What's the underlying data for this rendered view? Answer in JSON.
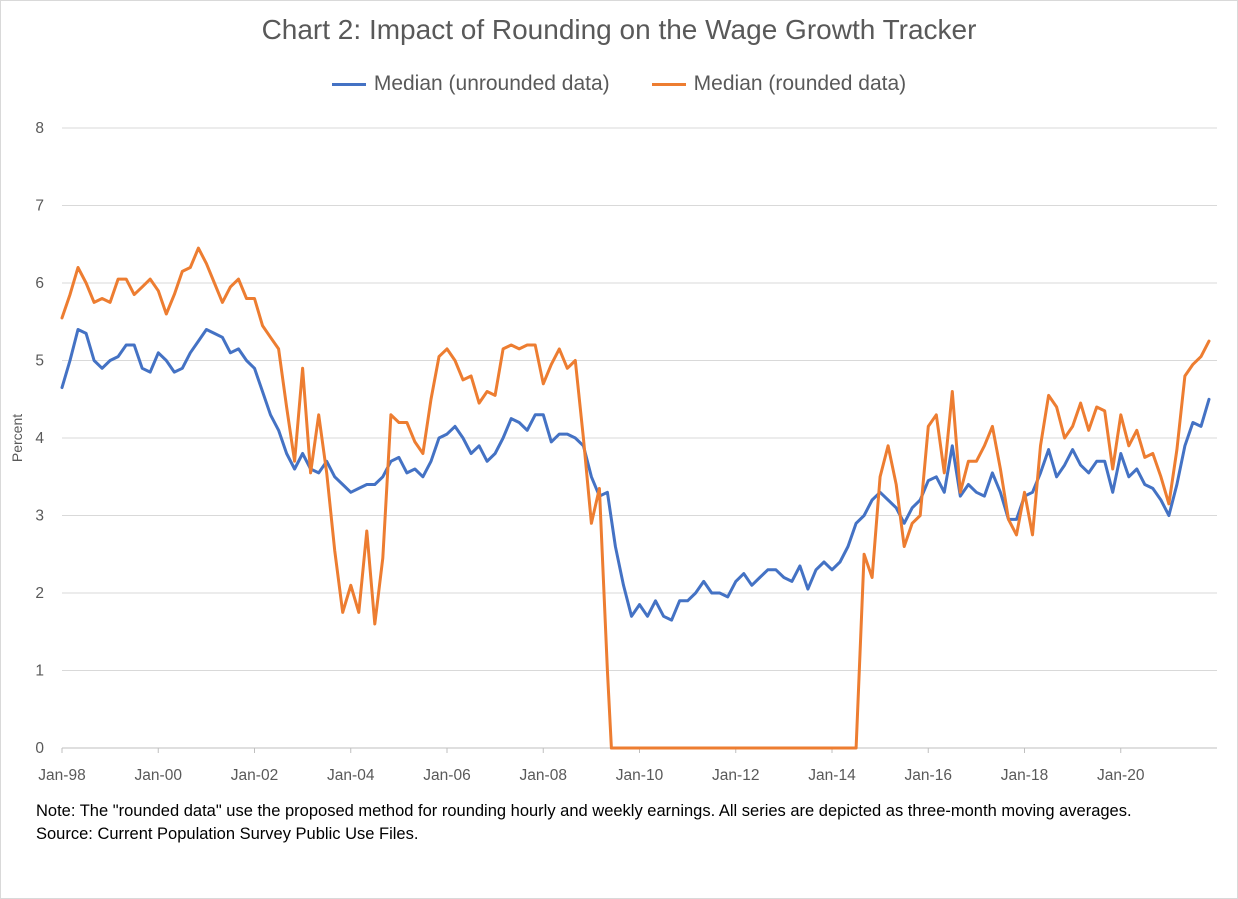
{
  "chart_data": {
    "type": "line",
    "title": "Chart 2: Impact of Rounding on the Wage Growth Tracker",
    "xlabel": "",
    "ylabel": "Percent",
    "ylim": [
      0,
      8
    ],
    "yticks": [
      "0",
      "1",
      "2",
      "3",
      "4",
      "5",
      "6",
      "7",
      "8"
    ],
    "xlim": [
      "1998-01",
      "2021-12"
    ],
    "xticks": [
      "Jan-98",
      "Jan-00",
      "Jan-02",
      "Jan-04",
      "Jan-06",
      "Jan-08",
      "Jan-10",
      "Jan-12",
      "Jan-14",
      "Jan-16",
      "Jan-18",
      "Jan-20"
    ],
    "grid": true,
    "legend_position": "top",
    "series": [
      {
        "name": "Median (unrounded data)",
        "color": "#4472C4",
        "points": [
          [
            "1998-01",
            4.65
          ],
          [
            "1998-03",
            5.0
          ],
          [
            "1998-05",
            5.4
          ],
          [
            "1998-07",
            5.35
          ],
          [
            "1998-09",
            5.0
          ],
          [
            "1998-11",
            4.9
          ],
          [
            "1999-01",
            5.0
          ],
          [
            "1999-03",
            5.05
          ],
          [
            "1999-05",
            5.2
          ],
          [
            "1999-07",
            5.2
          ],
          [
            "1999-09",
            4.9
          ],
          [
            "1999-11",
            4.85
          ],
          [
            "2000-01",
            5.1
          ],
          [
            "2000-03",
            5.0
          ],
          [
            "2000-05",
            4.85
          ],
          [
            "2000-07",
            4.9
          ],
          [
            "2000-09",
            5.1
          ],
          [
            "2000-11",
            5.25
          ],
          [
            "2001-01",
            5.4
          ],
          [
            "2001-03",
            5.35
          ],
          [
            "2001-05",
            5.3
          ],
          [
            "2001-07",
            5.1
          ],
          [
            "2001-09",
            5.15
          ],
          [
            "2001-11",
            5.0
          ],
          [
            "2002-01",
            4.9
          ],
          [
            "2002-03",
            4.6
          ],
          [
            "2002-05",
            4.3
          ],
          [
            "2002-07",
            4.1
          ],
          [
            "2002-09",
            3.8
          ],
          [
            "2002-11",
            3.6
          ],
          [
            "2003-01",
            3.8
          ],
          [
            "2003-03",
            3.6
          ],
          [
            "2003-05",
            3.55
          ],
          [
            "2003-07",
            3.7
          ],
          [
            "2003-09",
            3.5
          ],
          [
            "2003-11",
            3.4
          ],
          [
            "2004-01",
            3.3
          ],
          [
            "2004-03",
            3.35
          ],
          [
            "2004-05",
            3.4
          ],
          [
            "2004-07",
            3.4
          ],
          [
            "2004-09",
            3.5
          ],
          [
            "2004-11",
            3.7
          ],
          [
            "2005-01",
            3.75
          ],
          [
            "2005-03",
            3.55
          ],
          [
            "2005-05",
            3.6
          ],
          [
            "2005-07",
            3.5
          ],
          [
            "2005-09",
            3.7
          ],
          [
            "2005-11",
            4.0
          ],
          [
            "2006-01",
            4.05
          ],
          [
            "2006-03",
            4.15
          ],
          [
            "2006-05",
            4.0
          ],
          [
            "2006-07",
            3.8
          ],
          [
            "2006-09",
            3.9
          ],
          [
            "2006-11",
            3.7
          ],
          [
            "2007-01",
            3.8
          ],
          [
            "2007-03",
            4.0
          ],
          [
            "2007-05",
            4.25
          ],
          [
            "2007-07",
            4.2
          ],
          [
            "2007-09",
            4.1
          ],
          [
            "2007-11",
            4.3
          ],
          [
            "2008-01",
            4.3
          ],
          [
            "2008-03",
            3.95
          ],
          [
            "2008-05",
            4.05
          ],
          [
            "2008-07",
            4.05
          ],
          [
            "2008-09",
            4.0
          ],
          [
            "2008-11",
            3.9
          ],
          [
            "2009-01",
            3.5
          ],
          [
            "2009-03",
            3.25
          ],
          [
            "2009-05",
            3.3
          ],
          [
            "2009-07",
            2.6
          ],
          [
            "2009-09",
            2.1
          ],
          [
            "2009-11",
            1.7
          ],
          [
            "2010-01",
            1.85
          ],
          [
            "2010-03",
            1.7
          ],
          [
            "2010-05",
            1.9
          ],
          [
            "2010-07",
            1.7
          ],
          [
            "2010-09",
            1.65
          ],
          [
            "2010-11",
            1.9
          ],
          [
            "2011-01",
            1.9
          ],
          [
            "2011-03",
            2.0
          ],
          [
            "2011-05",
            2.15
          ],
          [
            "2011-07",
            2.0
          ],
          [
            "2011-09",
            2.0
          ],
          [
            "2011-11",
            1.95
          ],
          [
            "2012-01",
            2.15
          ],
          [
            "2012-03",
            2.25
          ],
          [
            "2012-05",
            2.1
          ],
          [
            "2012-07",
            2.2
          ],
          [
            "2012-09",
            2.3
          ],
          [
            "2012-11",
            2.3
          ],
          [
            "2013-01",
            2.2
          ],
          [
            "2013-03",
            2.15
          ],
          [
            "2013-05",
            2.35
          ],
          [
            "2013-07",
            2.05
          ],
          [
            "2013-09",
            2.3
          ],
          [
            "2013-11",
            2.4
          ],
          [
            "2014-01",
            2.3
          ],
          [
            "2014-03",
            2.4
          ],
          [
            "2014-05",
            2.6
          ],
          [
            "2014-07",
            2.9
          ],
          [
            "2014-09",
            3.0
          ],
          [
            "2014-11",
            3.2
          ],
          [
            "2015-01",
            3.3
          ],
          [
            "2015-03",
            3.2
          ],
          [
            "2015-05",
            3.1
          ],
          [
            "2015-07",
            2.9
          ],
          [
            "2015-09",
            3.1
          ],
          [
            "2015-11",
            3.2
          ],
          [
            "2016-01",
            3.45
          ],
          [
            "2016-03",
            3.5
          ],
          [
            "2016-05",
            3.3
          ],
          [
            "2016-07",
            3.9
          ],
          [
            "2016-09",
            3.25
          ],
          [
            "2016-11",
            3.4
          ],
          [
            "2017-01",
            3.3
          ],
          [
            "2017-03",
            3.25
          ],
          [
            "2017-05",
            3.55
          ],
          [
            "2017-07",
            3.3
          ],
          [
            "2017-09",
            2.95
          ],
          [
            "2017-11",
            2.95
          ],
          [
            "2018-01",
            3.25
          ],
          [
            "2018-03",
            3.3
          ],
          [
            "2018-05",
            3.55
          ],
          [
            "2018-07",
            3.85
          ],
          [
            "2018-09",
            3.5
          ],
          [
            "2018-11",
            3.65
          ],
          [
            "2019-01",
            3.85
          ],
          [
            "2019-03",
            3.65
          ],
          [
            "2019-05",
            3.55
          ],
          [
            "2019-07",
            3.7
          ],
          [
            "2019-09",
            3.7
          ],
          [
            "2019-11",
            3.3
          ],
          [
            "2020-01",
            3.8
          ],
          [
            "2020-03",
            3.5
          ],
          [
            "2020-05",
            3.6
          ],
          [
            "2020-07",
            3.4
          ],
          [
            "2020-09",
            3.35
          ],
          [
            "2020-11",
            3.2
          ],
          [
            "2021-01",
            3.0
          ],
          [
            "2021-03",
            3.4
          ],
          [
            "2021-05",
            3.9
          ],
          [
            "2021-07",
            4.2
          ],
          [
            "2021-09",
            4.15
          ],
          [
            "2021-11",
            4.5
          ]
        ]
      },
      {
        "name": "Median (rounded data)",
        "color": "#ED7D31",
        "points": [
          [
            "1998-01",
            5.55
          ],
          [
            "1998-03",
            5.85
          ],
          [
            "1998-05",
            6.2
          ],
          [
            "1998-07",
            6.0
          ],
          [
            "1998-09",
            5.75
          ],
          [
            "1998-11",
            5.8
          ],
          [
            "1999-01",
            5.75
          ],
          [
            "1999-03",
            6.05
          ],
          [
            "1999-05",
            6.05
          ],
          [
            "1999-07",
            5.85
          ],
          [
            "1999-09",
            5.95
          ],
          [
            "1999-11",
            6.05
          ],
          [
            "2000-01",
            5.9
          ],
          [
            "2000-03",
            5.6
          ],
          [
            "2000-05",
            5.85
          ],
          [
            "2000-07",
            6.15
          ],
          [
            "2000-09",
            6.2
          ],
          [
            "2000-11",
            6.45
          ],
          [
            "2001-01",
            6.25
          ],
          [
            "2001-03",
            6.0
          ],
          [
            "2001-05",
            5.75
          ],
          [
            "2001-07",
            5.95
          ],
          [
            "2001-09",
            6.05
          ],
          [
            "2001-11",
            5.8
          ],
          [
            "2002-01",
            5.8
          ],
          [
            "2002-03",
            5.45
          ],
          [
            "2002-05",
            5.3
          ],
          [
            "2002-07",
            5.15
          ],
          [
            "2002-09",
            4.4
          ],
          [
            "2002-11",
            3.7
          ],
          [
            "2003-01",
            4.9
          ],
          [
            "2003-03",
            3.55
          ],
          [
            "2003-05",
            4.3
          ],
          [
            "2003-07",
            3.55
          ],
          [
            "2003-09",
            2.55
          ],
          [
            "2003-11",
            1.75
          ],
          [
            "2004-01",
            2.1
          ],
          [
            "2004-03",
            1.75
          ],
          [
            "2004-05",
            2.8
          ],
          [
            "2004-07",
            1.6
          ],
          [
            "2004-09",
            2.45
          ],
          [
            "2004-11",
            4.3
          ],
          [
            "2005-01",
            4.2
          ],
          [
            "2005-03",
            4.2
          ],
          [
            "2005-05",
            3.95
          ],
          [
            "2005-07",
            3.8
          ],
          [
            "2005-09",
            4.5
          ],
          [
            "2005-11",
            5.05
          ],
          [
            "2006-01",
            5.15
          ],
          [
            "2006-03",
            5.0
          ],
          [
            "2006-05",
            4.75
          ],
          [
            "2006-07",
            4.8
          ],
          [
            "2006-09",
            4.45
          ],
          [
            "2006-11",
            4.6
          ],
          [
            "2007-01",
            4.55
          ],
          [
            "2007-03",
            5.15
          ],
          [
            "2007-05",
            5.2
          ],
          [
            "2007-07",
            5.15
          ],
          [
            "2007-09",
            5.2
          ],
          [
            "2007-11",
            5.2
          ],
          [
            "2008-01",
            4.7
          ],
          [
            "2008-03",
            4.95
          ],
          [
            "2008-05",
            5.15
          ],
          [
            "2008-07",
            4.9
          ],
          [
            "2008-09",
            5.0
          ],
          [
            "2008-11",
            4.0
          ],
          [
            "2009-01",
            2.9
          ],
          [
            "2009-03",
            3.35
          ],
          [
            "2009-05",
            1.0
          ],
          [
            "2009-06",
            0.0
          ],
          [
            "2014-07",
            0.0
          ],
          [
            "2014-09",
            2.5
          ],
          [
            "2014-11",
            2.2
          ],
          [
            "2015-01",
            3.5
          ],
          [
            "2015-03",
            3.9
          ],
          [
            "2015-05",
            3.4
          ],
          [
            "2015-07",
            2.6
          ],
          [
            "2015-09",
            2.9
          ],
          [
            "2015-11",
            3.0
          ],
          [
            "2016-01",
            4.15
          ],
          [
            "2016-03",
            4.3
          ],
          [
            "2016-05",
            3.55
          ],
          [
            "2016-07",
            4.6
          ],
          [
            "2016-09",
            3.3
          ],
          [
            "2016-11",
            3.7
          ],
          [
            "2017-01",
            3.7
          ],
          [
            "2017-03",
            3.9
          ],
          [
            "2017-05",
            4.15
          ],
          [
            "2017-07",
            3.6
          ],
          [
            "2017-09",
            2.95
          ],
          [
            "2017-11",
            2.75
          ],
          [
            "2018-01",
            3.3
          ],
          [
            "2018-03",
            2.75
          ],
          [
            "2018-05",
            3.9
          ],
          [
            "2018-07",
            4.55
          ],
          [
            "2018-09",
            4.4
          ],
          [
            "2018-11",
            4.0
          ],
          [
            "2019-01",
            4.15
          ],
          [
            "2019-03",
            4.45
          ],
          [
            "2019-05",
            4.1
          ],
          [
            "2019-07",
            4.4
          ],
          [
            "2019-09",
            4.35
          ],
          [
            "2019-11",
            3.6
          ],
          [
            "2020-01",
            4.3
          ],
          [
            "2020-03",
            3.9
          ],
          [
            "2020-05",
            4.1
          ],
          [
            "2020-07",
            3.75
          ],
          [
            "2020-09",
            3.8
          ],
          [
            "2020-11",
            3.5
          ],
          [
            "2021-01",
            3.15
          ],
          [
            "2021-03",
            3.85
          ],
          [
            "2021-05",
            4.8
          ],
          [
            "2021-07",
            4.95
          ],
          [
            "2021-09",
            5.05
          ],
          [
            "2021-11",
            5.25
          ]
        ]
      }
    ]
  },
  "notes": {
    "note": "Note: The \"rounded data\" use the proposed method for rounding hourly and weekly earnings.  All series are depicted as three-month moving averages.",
    "source": "Source: Current Population Survey Public Use Files."
  }
}
